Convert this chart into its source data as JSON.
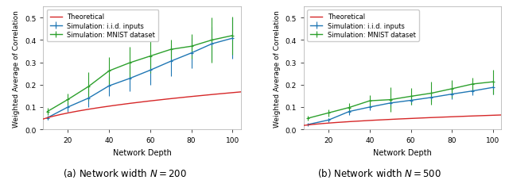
{
  "fig_width": 6.4,
  "fig_height": 2.28,
  "dpi": 100,
  "x": [
    10,
    20,
    30,
    40,
    50,
    60,
    70,
    80,
    90,
    100
  ],
  "x_smooth": [
    10,
    11,
    12,
    13,
    14,
    15,
    16,
    17,
    18,
    19,
    20,
    21,
    22,
    23,
    24,
    25,
    26,
    27,
    28,
    29,
    30,
    31,
    32,
    33,
    34,
    35,
    36,
    37,
    38,
    39,
    40,
    41,
    42,
    43,
    44,
    45,
    46,
    47,
    48,
    49,
    50,
    51,
    52,
    53,
    54,
    55,
    56,
    57,
    58,
    59,
    60,
    61,
    62,
    63,
    64,
    65,
    66,
    67,
    68,
    69,
    70,
    71,
    72,
    73,
    74,
    75,
    76,
    77,
    78,
    79,
    80,
    81,
    82,
    83,
    84,
    85,
    86,
    87,
    88,
    89,
    90,
    91,
    92,
    93,
    94,
    95,
    96,
    97,
    98,
    99,
    100
  ],
  "plot1": {
    "title": "(a) Network width $N = 200$",
    "ylabel": "Weighted Average of Correlation",
    "xlabel": "Network Depth",
    "xlim": [
      8,
      104
    ],
    "ylim": [
      0.0,
      0.55
    ],
    "yticks": [
      0.0,
      0.1,
      0.2,
      0.3,
      0.4,
      0.5
    ],
    "xticks": [
      20,
      40,
      60,
      80,
      100
    ],
    "theoretical_a": 0.052,
    "theoretical_b": 0.0048,
    "theoretical_c": 0.5,
    "iid_y": [
      0.052,
      0.1,
      0.14,
      0.195,
      0.228,
      0.265,
      0.305,
      0.342,
      0.383,
      0.408
    ],
    "iid_yerr": [
      0.01,
      0.022,
      0.04,
      0.045,
      0.058,
      0.065,
      0.068,
      0.068,
      0.075,
      0.092
    ],
    "mnist_y": [
      0.08,
      0.134,
      0.192,
      0.262,
      0.298,
      0.328,
      0.358,
      0.372,
      0.4,
      0.42
    ],
    "mnist_yerr": [
      0.015,
      0.025,
      0.065,
      0.062,
      0.072,
      0.075,
      0.042,
      0.055,
      0.1,
      0.085
    ]
  },
  "plot2": {
    "title": "(b) Network width $N = 500$",
    "ylabel": "Weighted Average of Correlation",
    "xlabel": "Network Depth",
    "xlim": [
      8,
      104
    ],
    "ylim": [
      0.0,
      0.55
    ],
    "yticks": [
      0.0,
      0.1,
      0.2,
      0.3,
      0.4,
      0.5
    ],
    "xticks": [
      20,
      40,
      60,
      80,
      100
    ],
    "theoretical_a": 0.02,
    "theoretical_b": 0.0018,
    "theoretical_c": 0.5,
    "iid_y": [
      0.022,
      0.042,
      0.08,
      0.1,
      0.118,
      0.13,
      0.143,
      0.158,
      0.172,
      0.188
    ],
    "iid_yerr": [
      0.004,
      0.01,
      0.014,
      0.014,
      0.018,
      0.018,
      0.02,
      0.024,
      0.02,
      0.03
    ],
    "mnist_y": [
      0.05,
      0.074,
      0.098,
      0.128,
      0.133,
      0.148,
      0.162,
      0.182,
      0.203,
      0.213
    ],
    "mnist_yerr": [
      0.01,
      0.015,
      0.02,
      0.026,
      0.056,
      0.038,
      0.05,
      0.04,
      0.028,
      0.055
    ]
  },
  "colors": {
    "theoretical": "#d62728",
    "iid": "#1f77b4",
    "mnist": "#2ca02c"
  },
  "legend_labels": [
    "Theoretical",
    "Simulation: i.i.d. inputs",
    "Simulation: MNIST dataset"
  ],
  "title_fontsize": 8.5,
  "label_fontsize": 7.0,
  "tick_fontsize": 6.5,
  "legend_fontsize": 6.0
}
